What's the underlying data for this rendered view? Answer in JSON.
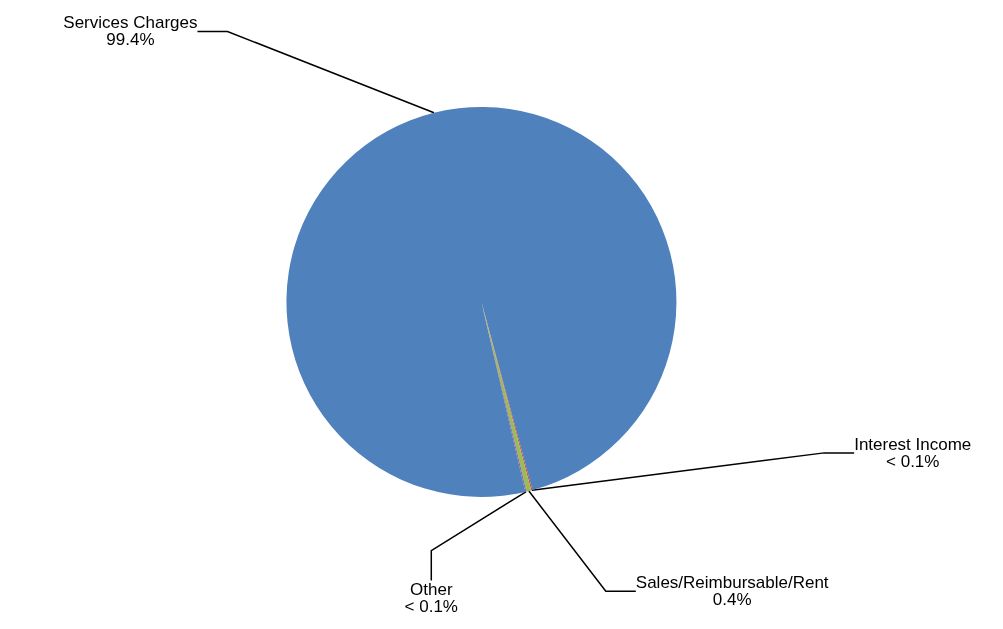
{
  "chart_data": {
    "type": "pie",
    "categories": [
      "Services Charges",
      "Interest Income",
      "Sales/Reimbursable/Rent",
      "Other"
    ],
    "values": [
      99.4,
      0.1,
      0.4,
      0.1
    ],
    "colors": [
      "#4f81bd",
      "#c0504d",
      "#9bbb59",
      "#8064a2"
    ],
    "value_labels": [
      "99.4%",
      "< 0.1%",
      "0.4%",
      "< 0.1%"
    ],
    "legend": false
  }
}
